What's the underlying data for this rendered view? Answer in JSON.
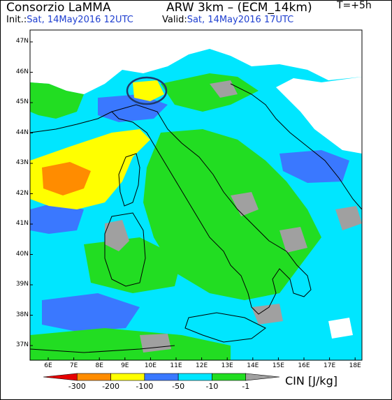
{
  "header": {
    "title_left": "Consorzio LaMMA",
    "title_right": "ARW 3km – (ECM_14km)",
    "init_label": "Init.:",
    "init_value": "Sat, 14May2016 12UTC",
    "valid_label": "Valid:",
    "valid_value": "Sat, 14May2016 17UTC",
    "lead_time": "T=+5h"
  },
  "map": {
    "lat_labels": [
      "47N",
      "46N",
      "45N",
      "44N",
      "43N",
      "42N",
      "41N",
      "40N",
      "39N",
      "38N",
      "37N"
    ],
    "lon_labels": [
      "6E",
      "7E",
      "8E",
      "9E",
      "10E",
      "11E",
      "12E",
      "13E",
      "14E",
      "15E",
      "16E",
      "17E",
      "18E"
    ]
  },
  "colorbar": {
    "unit_label": "CIN [J/kg]",
    "ticks": [
      "-300",
      "-200",
      "-100",
      "-50",
      "-10",
      "-1"
    ],
    "colors": [
      "#e60000",
      "#ff8c00",
      "#ffff00",
      "#3a78ff",
      "#00e6ff",
      "#22dd22",
      "#a0a0a0"
    ]
  },
  "colors": {
    "background_white": "#ffffff",
    "cyan": "#00e6ff",
    "green": "#22dd22",
    "yellow": "#ffff00",
    "orange": "#ff8c00",
    "blue": "#3a78ff",
    "gray": "#a0a0a0",
    "coast": "#000000",
    "ellipse": "#1e3a6e"
  }
}
